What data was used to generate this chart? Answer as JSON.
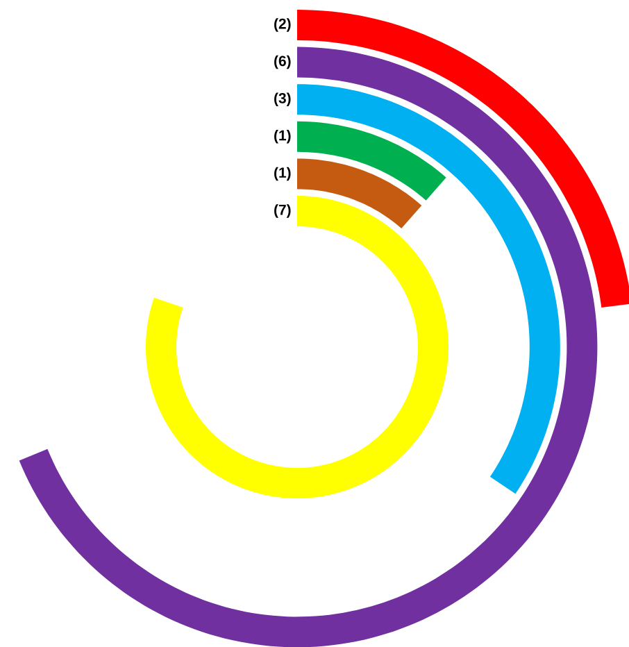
{
  "chart_data": {
    "type": "other",
    "categories": [
      null,
      null,
      null,
      null,
      null,
      null
    ],
    "values": [
      2,
      6,
      3,
      1,
      1,
      7
    ],
    "colors": [
      "#ff0000",
      "#7030a0",
      "#00b0f0",
      "#00b050",
      "#c55a11",
      "#ffff00"
    ],
    "value_labels": [
      "(2)",
      "(6)",
      "(3)",
      "(1)",
      "(1)",
      "(7)"
    ]
  }
}
